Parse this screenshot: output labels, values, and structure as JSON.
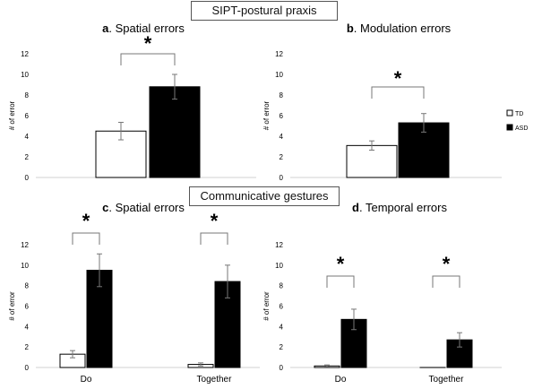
{
  "sections": {
    "sipt": "SIPT-postural praxis",
    "communicative": "Communicative gestures"
  },
  "colors": {
    "td": "#ffffff",
    "asd": "#000000",
    "axis": "#d9d9d9",
    "text": "#000000"
  },
  "legend": {
    "td": "TD",
    "asd": "ASD",
    "placement": "right"
  },
  "chart_data": [
    {
      "id": "a",
      "type": "bar",
      "title_letter": "a",
      "title_text": ". Spatial errors",
      "ylabel": "# of error",
      "ylim": [
        0,
        12
      ],
      "yticks": [
        0,
        2,
        4,
        6,
        8,
        10,
        12
      ],
      "categories": [
        ""
      ],
      "series": [
        {
          "name": "TD",
          "values": [
            4.5
          ],
          "errors": [
            0.85
          ]
        },
        {
          "name": "ASD",
          "values": [
            8.8
          ],
          "errors": [
            1.2
          ]
        }
      ],
      "significance": [
        "*"
      ]
    },
    {
      "id": "b",
      "type": "bar",
      "title_letter": "b",
      "title_text": ". Modulation errors",
      "ylabel": "# of error",
      "ylim": [
        0,
        12
      ],
      "yticks": [
        0,
        2,
        4,
        6,
        8,
        10,
        12
      ],
      "categories": [
        ""
      ],
      "series": [
        {
          "name": "TD",
          "values": [
            3.1
          ],
          "errors": [
            0.45
          ]
        },
        {
          "name": "ASD",
          "values": [
            5.3
          ],
          "errors": [
            0.9
          ]
        }
      ],
      "significance": [
        "*"
      ]
    },
    {
      "id": "c",
      "type": "bar",
      "title_letter": "c",
      "title_text": ". Spatial errors",
      "ylabel": "# of error",
      "ylim": [
        0,
        12
      ],
      "yticks": [
        0,
        2,
        4,
        6,
        8,
        10,
        12
      ],
      "categories": [
        "Do",
        "Together"
      ],
      "series": [
        {
          "name": "TD",
          "values": [
            1.3,
            0.3
          ],
          "errors": [
            0.35,
            0.15
          ]
        },
        {
          "name": "ASD",
          "values": [
            9.5,
            8.4
          ],
          "errors": [
            1.6,
            1.6
          ]
        }
      ],
      "significance": [
        "*",
        "*"
      ]
    },
    {
      "id": "d",
      "type": "bar",
      "title_letter": "d",
      "title_text": ". Temporal errors",
      "ylabel": "# of error",
      "ylim": [
        0,
        12
      ],
      "yticks": [
        0,
        2,
        4,
        6,
        8,
        10,
        12
      ],
      "categories": [
        "Do",
        "Together"
      ],
      "series": [
        {
          "name": "TD",
          "values": [
            0.15,
            0.0
          ],
          "errors": [
            0.1,
            0.0
          ]
        },
        {
          "name": "ASD",
          "values": [
            4.7,
            2.7
          ],
          "errors": [
            1.0,
            0.7
          ]
        }
      ],
      "significance": [
        "*",
        "*"
      ]
    }
  ]
}
